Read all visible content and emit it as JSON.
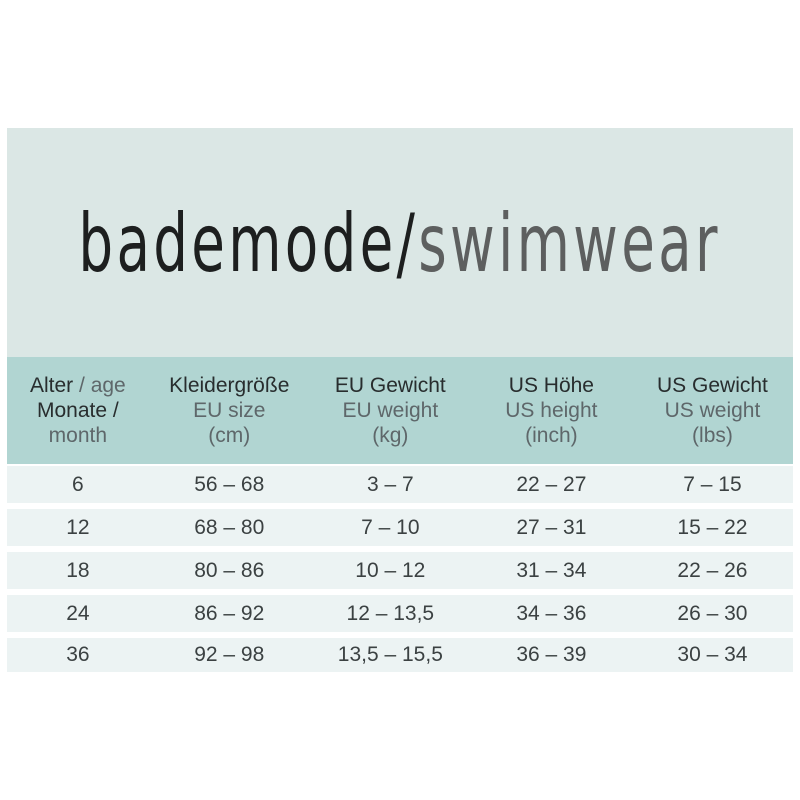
{
  "title": {
    "german": "bademode/",
    "english": "swimwear"
  },
  "colors": {
    "panel_background": "#dbe7e5",
    "header_band": "#b1d5d2",
    "row_stripe": "#ecf3f3",
    "title_dark": "#1d1f1f",
    "title_gray": "#5d5f5f",
    "header_dark": "#282d2e",
    "header_gray": "#5e676a",
    "data_text": "#3b4142"
  },
  "header": {
    "columns": [
      {
        "line1_dark": "Alter",
        "line1_gray": " / age",
        "line2_dark": "Monate /",
        "line2_gray": "",
        "line3": "month"
      },
      {
        "line1_dark": "Kleidergröße",
        "line1_gray": "",
        "line2_dark": "",
        "line2_gray": "EU size",
        "line3": "(cm)"
      },
      {
        "line1_dark": "EU Gewicht",
        "line1_gray": "",
        "line2_dark": "",
        "line2_gray": "EU weight",
        "line3": "(kg)"
      },
      {
        "line1_dark": "US Höhe",
        "line1_gray": "",
        "line2_dark": "",
        "line2_gray": "US height",
        "line3": "(inch)"
      },
      {
        "line1_dark": "US Gewicht",
        "line1_gray": "",
        "line2_dark": "",
        "line2_gray": "US weight",
        "line3": "(lbs)"
      }
    ]
  },
  "chart_data": {
    "type": "table",
    "title": "bademode/swimwear",
    "columns": [
      "Alter / age Monate / month",
      "Kleidergröße EU size (cm)",
      "EU Gewicht EU weight (kg)",
      "US Höhe US height (inch)",
      "US Gewicht US weight (lbs)"
    ],
    "rows": [
      [
        "6",
        "56 – 68",
        "3 – 7",
        "22 – 27",
        "7 – 15"
      ],
      [
        "12",
        "68 – 80",
        "7 – 10",
        "27 – 31",
        "15 – 22"
      ],
      [
        "18",
        "80 – 86",
        "10 – 12",
        "31 – 34",
        "22 – 26"
      ],
      [
        "24",
        "86 – 92",
        "12 – 13,5",
        "34 – 36",
        "26 – 30"
      ],
      [
        "36",
        "92 – 98",
        "13,5 – 15,5",
        "36 – 39",
        "30 – 34"
      ]
    ]
  }
}
